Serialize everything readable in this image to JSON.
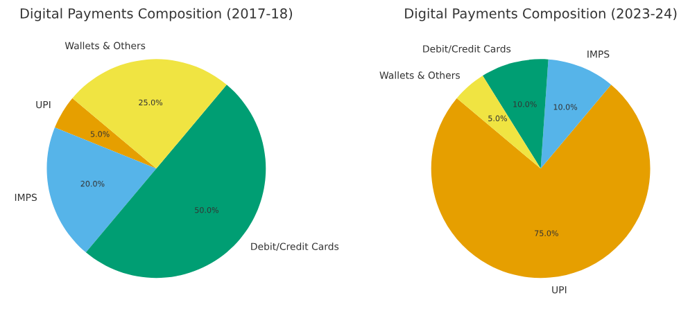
{
  "chart_data": [
    {
      "type": "pie",
      "title": "Digital Payments Composition (2017-18)",
      "categories": [
        "UPI",
        "IMPS",
        "Debit/Credit Cards",
        "Wallets & Others"
      ],
      "values": [
        5,
        20,
        50,
        25
      ],
      "value_labels": [
        "5.0%",
        "20.0%",
        "50.0%",
        "25.0%"
      ],
      "colors": [
        "#e69f00",
        "#56b4e9",
        "#009e73",
        "#f0e442"
      ]
    },
    {
      "type": "pie",
      "title": "Digital Payments Composition (2023-24)",
      "categories": [
        "UPI",
        "IMPS",
        "Debit/Credit Cards",
        "Wallets & Others"
      ],
      "values": [
        75,
        10,
        10,
        5
      ],
      "value_labels": [
        "75.0%",
        "10.0%",
        "10.0%",
        "5.0%"
      ],
      "colors": [
        "#e69f00",
        "#56b4e9",
        "#009e73",
        "#f0e442"
      ]
    }
  ]
}
